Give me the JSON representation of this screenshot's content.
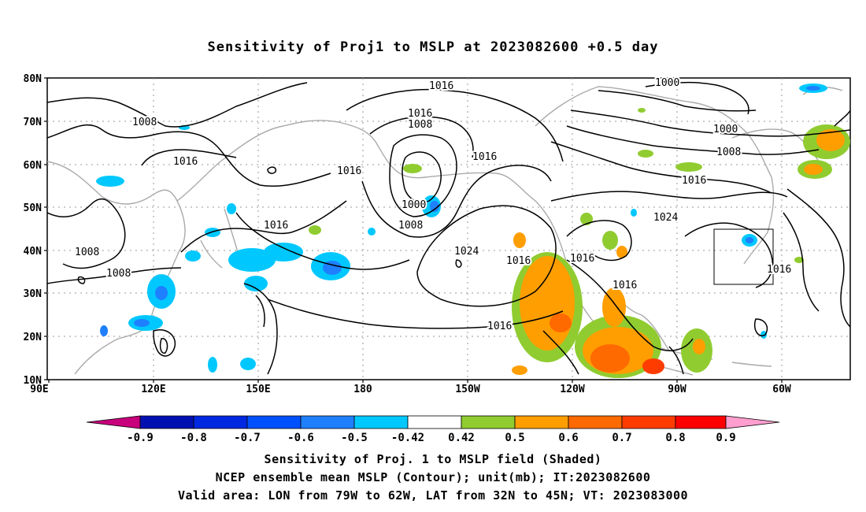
{
  "title": "Sensitivity of Proj1 to MSLP at 2023082600 +0.5 day",
  "lat_labels": [
    "80N",
    "70N",
    "60N",
    "50N",
    "40N",
    "30N",
    "20N",
    "10N"
  ],
  "lon_labels": [
    "90E",
    "120E",
    "150E",
    "180",
    "150W",
    "120W",
    "90W",
    "60W"
  ],
  "contour_labels": [
    "1016",
    "1000",
    "1016",
    "1008",
    "1008",
    "1016",
    "1016",
    "1000",
    "1008",
    "1016",
    "1008",
    "1016",
    "1000",
    "1008",
    "1024",
    "1016",
    "1008",
    "1024",
    "1016",
    "1016",
    "1016",
    "1016",
    "1016"
  ],
  "colorbar": {
    "labels": [
      "-0.9",
      "-0.8",
      "-0.7",
      "-0.6",
      "-0.5",
      "-0.42",
      "0.42",
      "0.5",
      "0.6",
      "0.7",
      "0.8",
      "0.9"
    ],
    "colors": [
      "#c8007c",
      "#0010b0",
      "#0028e0",
      "#0050ff",
      "#1e80ff",
      "#00c8ff",
      "#ffffff",
      "#90cc30",
      "#ff9e00",
      "#ff6a00",
      "#ff3c00",
      "#ff0000",
      "#ff9ecf"
    ]
  },
  "captions": {
    "line1": "Sensitivity of Proj. 1 to MSLP field (Shaded)",
    "line2": "NCEP ensemble mean MSLP (Contour); unit(mb); IT:2023082600",
    "line3": "Valid area: LON from 79W to 62W, LAT from 32N to 45N; VT: 2023083000"
  }
}
